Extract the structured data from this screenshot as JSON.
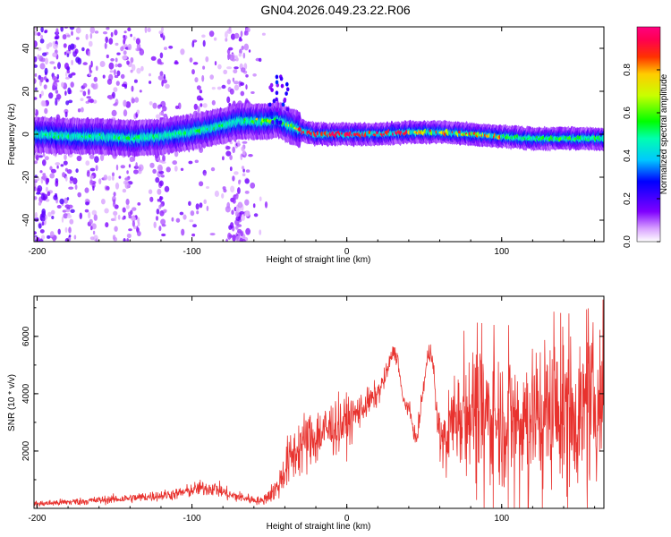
{
  "title": "GN04.2026.049.23.22.R06",
  "colors": {
    "snr_line": "#e8322e",
    "axis": "#000000",
    "grid_tick": "#000000",
    "background": "#ffffff"
  },
  "chart_data": [
    {
      "type": "heatmap",
      "name": "spectrogram",
      "xlabel": "Height of straight line (km)",
      "ylabel": "Frequency (Hz)",
      "xlim": [
        -202,
        166
      ],
      "ylim": [
        -50,
        50
      ],
      "xticks": [
        -200,
        -100,
        0,
        100
      ],
      "yticks": [
        -40,
        -20,
        0,
        20,
        40
      ],
      "colorbar": {
        "label": "Normalized spectral amplitude",
        "range": [
          0,
          1
        ],
        "ticks": [
          0.0,
          0.2,
          0.4,
          0.6,
          0.8
        ]
      },
      "ridge_center_hz": {
        "x": [
          -202,
          -180,
          -160,
          -140,
          -120,
          -100,
          -80,
          -70,
          -60,
          -50,
          -45,
          -40,
          -30,
          -20,
          -10,
          0,
          20,
          40,
          60,
          80,
          100,
          120,
          140,
          166
        ],
        "y": [
          0,
          -1,
          -1,
          -2,
          -1,
          1,
          4,
          6,
          6,
          6,
          7,
          5,
          2,
          0,
          0,
          0,
          0,
          1,
          1,
          0,
          -1,
          -2,
          -2,
          -2
        ]
      }
    },
    {
      "type": "line",
      "name": "snr",
      "xlabel": "Height of straight line (km)",
      "ylabel": "SNR (10 * v/v)",
      "xlim": [
        -202,
        166
      ],
      "ylim": [
        0,
        7400
      ],
      "xticks": [
        -200,
        -100,
        0,
        100
      ],
      "yticks": [
        2000,
        4000,
        6000
      ],
      "envelope": {
        "x": [
          -202,
          -170,
          -140,
          -110,
          -95,
          -85,
          -75,
          -65,
          -55,
          -45,
          -38,
          -30,
          -20,
          -10,
          0,
          10,
          20,
          25,
          30,
          33,
          36,
          40,
          45,
          48,
          52,
          55,
          58,
          62,
          70,
          80,
          90,
          100,
          110,
          120,
          130,
          140,
          150,
          160,
          166
        ],
        "center": [
          150,
          250,
          350,
          500,
          700,
          700,
          450,
          350,
          250,
          700,
          1600,
          2200,
          2500,
          2800,
          3000,
          3500,
          4000,
          4600,
          5500,
          5200,
          3800,
          3500,
          2300,
          3600,
          5200,
          5600,
          3200,
          2300,
          3300,
          3500,
          3200,
          3100,
          3200,
          3300,
          3400,
          3300,
          3300,
          3600,
          3800
        ],
        "amplitude": [
          120,
          150,
          180,
          220,
          300,
          300,
          250,
          200,
          150,
          500,
          1000,
          1200,
          1200,
          1100,
          1000,
          600,
          500,
          400,
          300,
          300,
          300,
          300,
          300,
          400,
          400,
          500,
          800,
          900,
          2000,
          2400,
          2600,
          2600,
          2600,
          2700,
          2800,
          2800,
          2800,
          2800,
          2800
        ]
      }
    }
  ]
}
